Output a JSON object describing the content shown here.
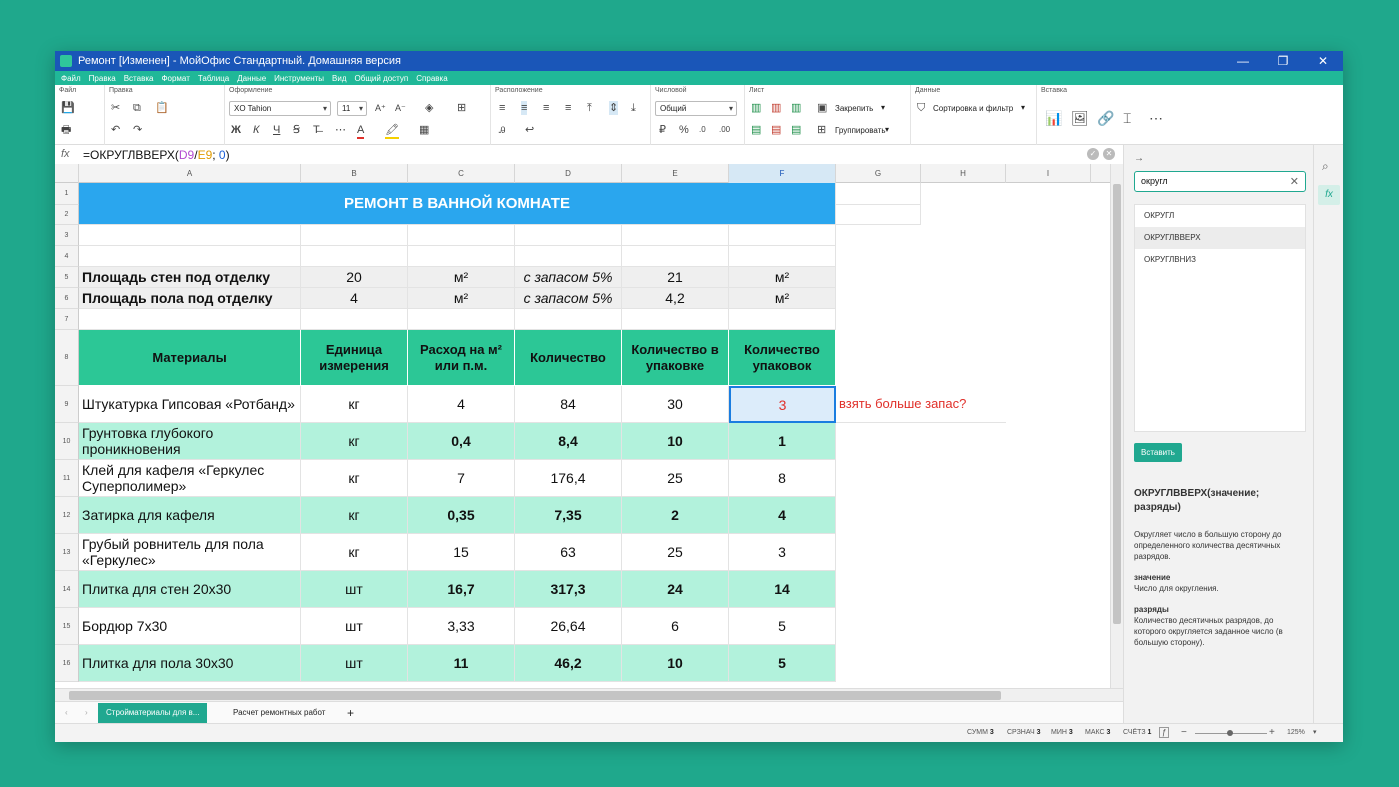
{
  "window": {
    "title": "Ремонт [Изменен] - МойОфис Стандартный. Домашняя версия",
    "controls": {
      "minimize": "—",
      "maximize": "❐",
      "close": "✕"
    }
  },
  "menu": [
    "Файл",
    "Правка",
    "Вставка",
    "Формат",
    "Таблица",
    "Данные",
    "Инструменты",
    "Вид",
    "Общий доступ",
    "Справка"
  ],
  "ribbon": {
    "groups": {
      "file": "Файл",
      "edit": "Правка",
      "format": "Оформление",
      "layout": "Расположение",
      "number": "Числовой",
      "sheet": "Лист",
      "data": "Данные",
      "insert": "Вставка"
    },
    "font_name": "XO Tahion",
    "font_size": "11",
    "number_format": "Общий",
    "freeze": "Закрепить",
    "group": "Группировать",
    "sort_filter": "Сортировка и фильтр",
    "icons": {
      "save": "💾",
      "print": "🖶",
      "cut": "✂",
      "copy": "⧉",
      "paste": "📋",
      "undo": "↶",
      "redo": "↷",
      "bold": "Ж",
      "italic": "К",
      "underline": "Ч",
      "strike": "Ꞩ",
      "font_grow": "A⁺",
      "font_shrink": "A⁻",
      "text_color": "A",
      "highlight": "🖍",
      "borders": "⊞",
      "currency": "₽",
      "percent": "%"
    }
  },
  "formula_bar": {
    "fx": "fx",
    "prefix": "=ОКРУГЛВВЕРХ(",
    "ref1": "D9",
    "slash": "/",
    "ref2": "E9",
    "sep": "; ",
    "digits": "0",
    "suffix": ")"
  },
  "columns": [
    "A",
    "B",
    "C",
    "D",
    "E",
    "F",
    "G",
    "H",
    "I"
  ],
  "rows": {
    "numbers": [
      "1",
      "2",
      "3",
      "4",
      "5",
      "6",
      "7",
      "8",
      "9",
      "10",
      "11",
      "12",
      "13",
      "14",
      "15",
      "16"
    ],
    "title": "РЕМОНТ В ВАННОЙ КОМНАТЕ",
    "r5": {
      "label": "Площадь стен под отделку",
      "b": "20",
      "c": "м²",
      "d": "с запасом 5%",
      "e": "21",
      "f": "м²"
    },
    "r6": {
      "label": "Площадь пола под отделку",
      "b": "4",
      "c": "м²",
      "d": "с запасом 5%",
      "e": "4,2",
      "f": "м²"
    },
    "headers": {
      "a": "Материалы",
      "b": "Единица измерения",
      "c": "Расход на м² или п.м.",
      "d": "Количество",
      "e": "Количество в упаковке",
      "f": "Количество упаковок"
    },
    "data": [
      {
        "a": "Штукатурка Гипсовая «Ротбанд»",
        "b": "кг",
        "c": "4",
        "d": "84",
        "e": "30",
        "f": "3",
        "note": "взять больше запас?"
      },
      {
        "a": "Грунтовка глубокого проникновения",
        "b": "кг",
        "c": "0,4",
        "d": "8,4",
        "e": "10",
        "f": "1",
        "note": ""
      },
      {
        "a": "Клей для кафеля «Геркулес Суперполимер»",
        "b": "кг",
        "c": "7",
        "d": "176,4",
        "e": "25",
        "f": "8",
        "note": ""
      },
      {
        "a": "Затирка для кафеля",
        "b": "кг",
        "c": "0,35",
        "d": "7,35",
        "e": "2",
        "f": "4",
        "note": ""
      },
      {
        "a": "Грубый ровнитель для пола «Геркулес»",
        "b": "кг",
        "c": "15",
        "d": "63",
        "e": "25",
        "f": "3",
        "note": ""
      },
      {
        "a": "Плитка для стен 20х30",
        "b": "шт",
        "c": "16,7",
        "d": "317,3",
        "e": "24",
        "f": "14",
        "note": ""
      },
      {
        "a": "Бордюр 7х30",
        "b": "шт",
        "c": "3,33",
        "d": "26,64",
        "e": "6",
        "f": "5",
        "note": ""
      },
      {
        "a": "Плитка для пола 30х30",
        "b": "шт",
        "c": "11",
        "d": "46,2",
        "e": "10",
        "f": "5",
        "note": ""
      }
    ]
  },
  "sheets": {
    "tabs": [
      "Стройматериалы для в...",
      "Расчет ремонтных работ"
    ],
    "add": "+",
    "prev": "‹",
    "next": "›"
  },
  "status": {
    "sum_label": "СУММ",
    "sum": "3",
    "avg_label": "СРЗНАЧ",
    "avg": "3",
    "min_label": "МИН",
    "min": "3",
    "max_label": "МАКС",
    "max": "3",
    "count_label": "СЧЁТЗ",
    "count": "1",
    "zoom": "125%",
    "zoom_minus": "−",
    "zoom_plus": "+"
  },
  "function_panel": {
    "search_value": "округл",
    "items": [
      "ОКРУГЛ",
      "ОКРУГЛВВЕРХ",
      "ОКРУГЛВНИЗ"
    ],
    "insert_label": "Вставить",
    "signature": "ОКРУГЛВВЕРХ(значение; разряды)",
    "description": "Округляет число в большую сторону до определенного количества десятичных разрядов.",
    "param1_name": "значение",
    "param1_desc": "Число для округления.",
    "param2_name": "разряды",
    "param2_desc": "Количество десятичных разрядов, до которого округляется заданное число (в большую сторону)."
  },
  "colors": {
    "title_bar": "#1a56b8",
    "accent": "#20a890",
    "title_band": "#2aa6ee",
    "header_band": "#2cc796",
    "mint_row": "#b2f2dc",
    "note_red": "#e0302a"
  }
}
